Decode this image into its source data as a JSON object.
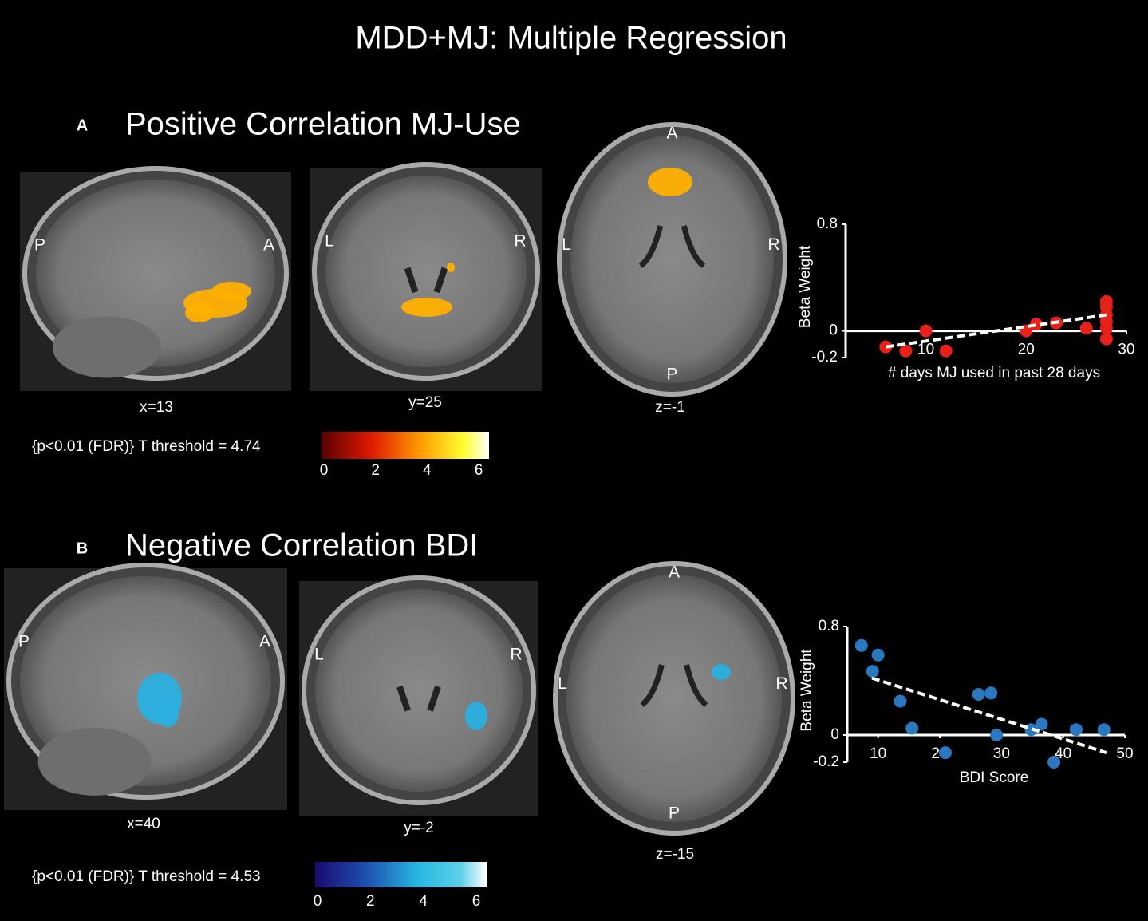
{
  "title": "MDD+MJ: Multiple Regression",
  "panels": [
    {
      "label": "A",
      "heading": "Positive Correlation MJ-Use",
      "slices": [
        {
          "coord": "x=13",
          "orient": [
            "P",
            "A"
          ]
        },
        {
          "coord": "y=25",
          "orient": [
            "L",
            "R"
          ]
        },
        {
          "coord": "z=-1",
          "orient": [
            "L",
            "R",
            "A",
            "P"
          ]
        }
      ],
      "threshold": "{p<0.01 (FDR)} T threshold = 4.74",
      "colorbar_ticks": [
        0,
        2,
        4,
        6
      ]
    },
    {
      "label": "B",
      "heading": "Negative Correlation BDI",
      "slices": [
        {
          "coord": "x=40",
          "orient": [
            "P",
            "A"
          ]
        },
        {
          "coord": "y=-2",
          "orient": [
            "L",
            "R"
          ]
        },
        {
          "coord": "z=-15",
          "orient": [
            "L",
            "R",
            "A",
            "P"
          ]
        }
      ],
      "threshold": "{p<0.01 (FDR)} T threshold = 4.53",
      "colorbar_ticks": [
        0,
        2,
        4,
        6
      ]
    }
  ],
  "chart_data": [
    {
      "type": "scatter",
      "x_label": "# days MJ used in past 28 days",
      "y_label": "Beta Weight",
      "color": "#e8201a",
      "x": [
        6,
        8,
        10,
        12,
        20,
        21,
        23,
        26,
        28,
        28,
        28,
        28,
        28,
        28
      ],
      "y": [
        -0.12,
        -0.15,
        0.0,
        -0.15,
        0.0,
        0.05,
        0.06,
        0.02,
        0.22,
        0.18,
        0.12,
        0.07,
        0.02,
        -0.06
      ],
      "trend": {
        "x": [
          6,
          28
        ],
        "y": [
          -0.12,
          0.12
        ]
      },
      "xlim": [
        2,
        30
      ],
      "ylim": [
        -0.2,
        0.8
      ],
      "xticks": [
        10,
        20,
        30
      ],
      "yticks": [
        0.8,
        0,
        -0.2
      ]
    },
    {
      "type": "scatter",
      "x_label": "BDI Score",
      "y_label": "Beta Weight",
      "color": "#2a78c0",
      "x": [
        7.3,
        9.1,
        10,
        13.6,
        15.5,
        20.9,
        26.3,
        28.3,
        29.2,
        34.8,
        36.5,
        38.5,
        42.1,
        46.6
      ],
      "y": [
        0.66,
        0.47,
        0.59,
        0.25,
        0.05,
        -0.13,
        0.3,
        0.31,
        0.0,
        0.04,
        0.08,
        -0.2,
        0.04,
        0.04
      ],
      "trend": {
        "x": [
          9,
          47
        ],
        "y": [
          0.42,
          -0.13
        ]
      },
      "xlim": [
        5,
        50
      ],
      "ylim": [
        -0.2,
        0.8
      ],
      "xticks": [
        10,
        20,
        30,
        40,
        50
      ],
      "yticks": [
        0.8,
        0,
        -0.2
      ]
    }
  ]
}
